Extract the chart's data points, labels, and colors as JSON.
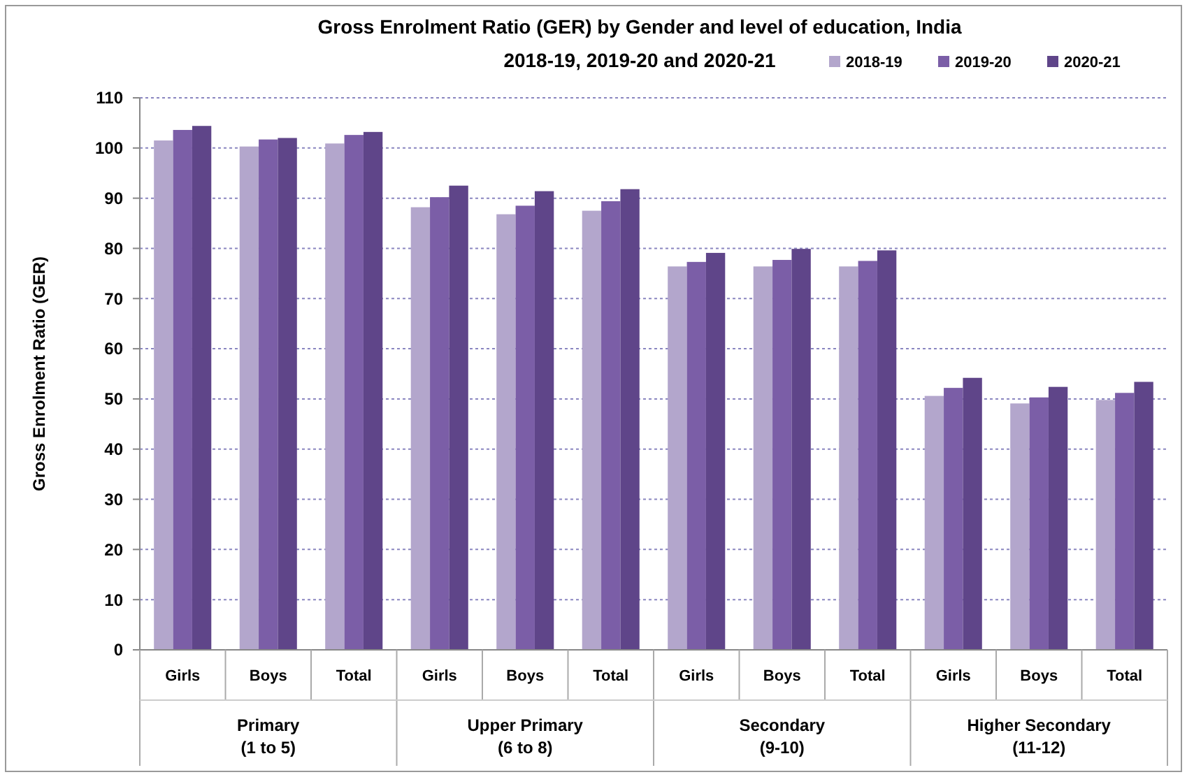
{
  "chart_data": {
    "type": "bar",
    "title": "Gross Enrolment Ratio (GER) by Gender and level of education, India",
    "subtitle": "2018-19, 2019-20 and 2020-21",
    "ylabel": "Gross Enrolment Ratio (GER)",
    "categories": [
      "Girls",
      "Boys",
      "Total",
      "Girls",
      "Boys",
      "Total",
      "Girls",
      "Boys",
      "Total",
      "Girls",
      "Boys",
      "Total"
    ],
    "series": [
      {
        "name": "2018-19",
        "color": "#b3a6cc",
        "values": [
          101.5,
          100.3,
          100.9,
          88.2,
          86.8,
          87.5,
          76.4,
          76.4,
          76.4,
          50.6,
          49.1,
          49.8
        ]
      },
      {
        "name": "2019-20",
        "color": "#7b5ea7",
        "values": [
          103.6,
          101.7,
          102.6,
          90.2,
          88.5,
          89.4,
          77.3,
          77.7,
          77.5,
          52.2,
          50.3,
          51.2
        ]
      },
      {
        "name": "2020-21",
        "color": "#5f4589",
        "values": [
          104.4,
          102,
          103.2,
          92.5,
          91.4,
          91.8,
          79.1,
          79.9,
          79.6,
          54.2,
          52.4,
          53.4
        ]
      }
    ],
    "annotations": [
      "Primary\n(1 to 5)",
      "Upper Primary\n(6 to 8)",
      "Secondary\n(9-10)",
      "Higher Secondary\n(11-12)"
    ],
    "ylim": [
      0,
      110
    ],
    "yticks": [
      0,
      10,
      20,
      30,
      40,
      50,
      60,
      70,
      80,
      90,
      100,
      110
    ],
    "grid": "y",
    "legend": "top right"
  }
}
